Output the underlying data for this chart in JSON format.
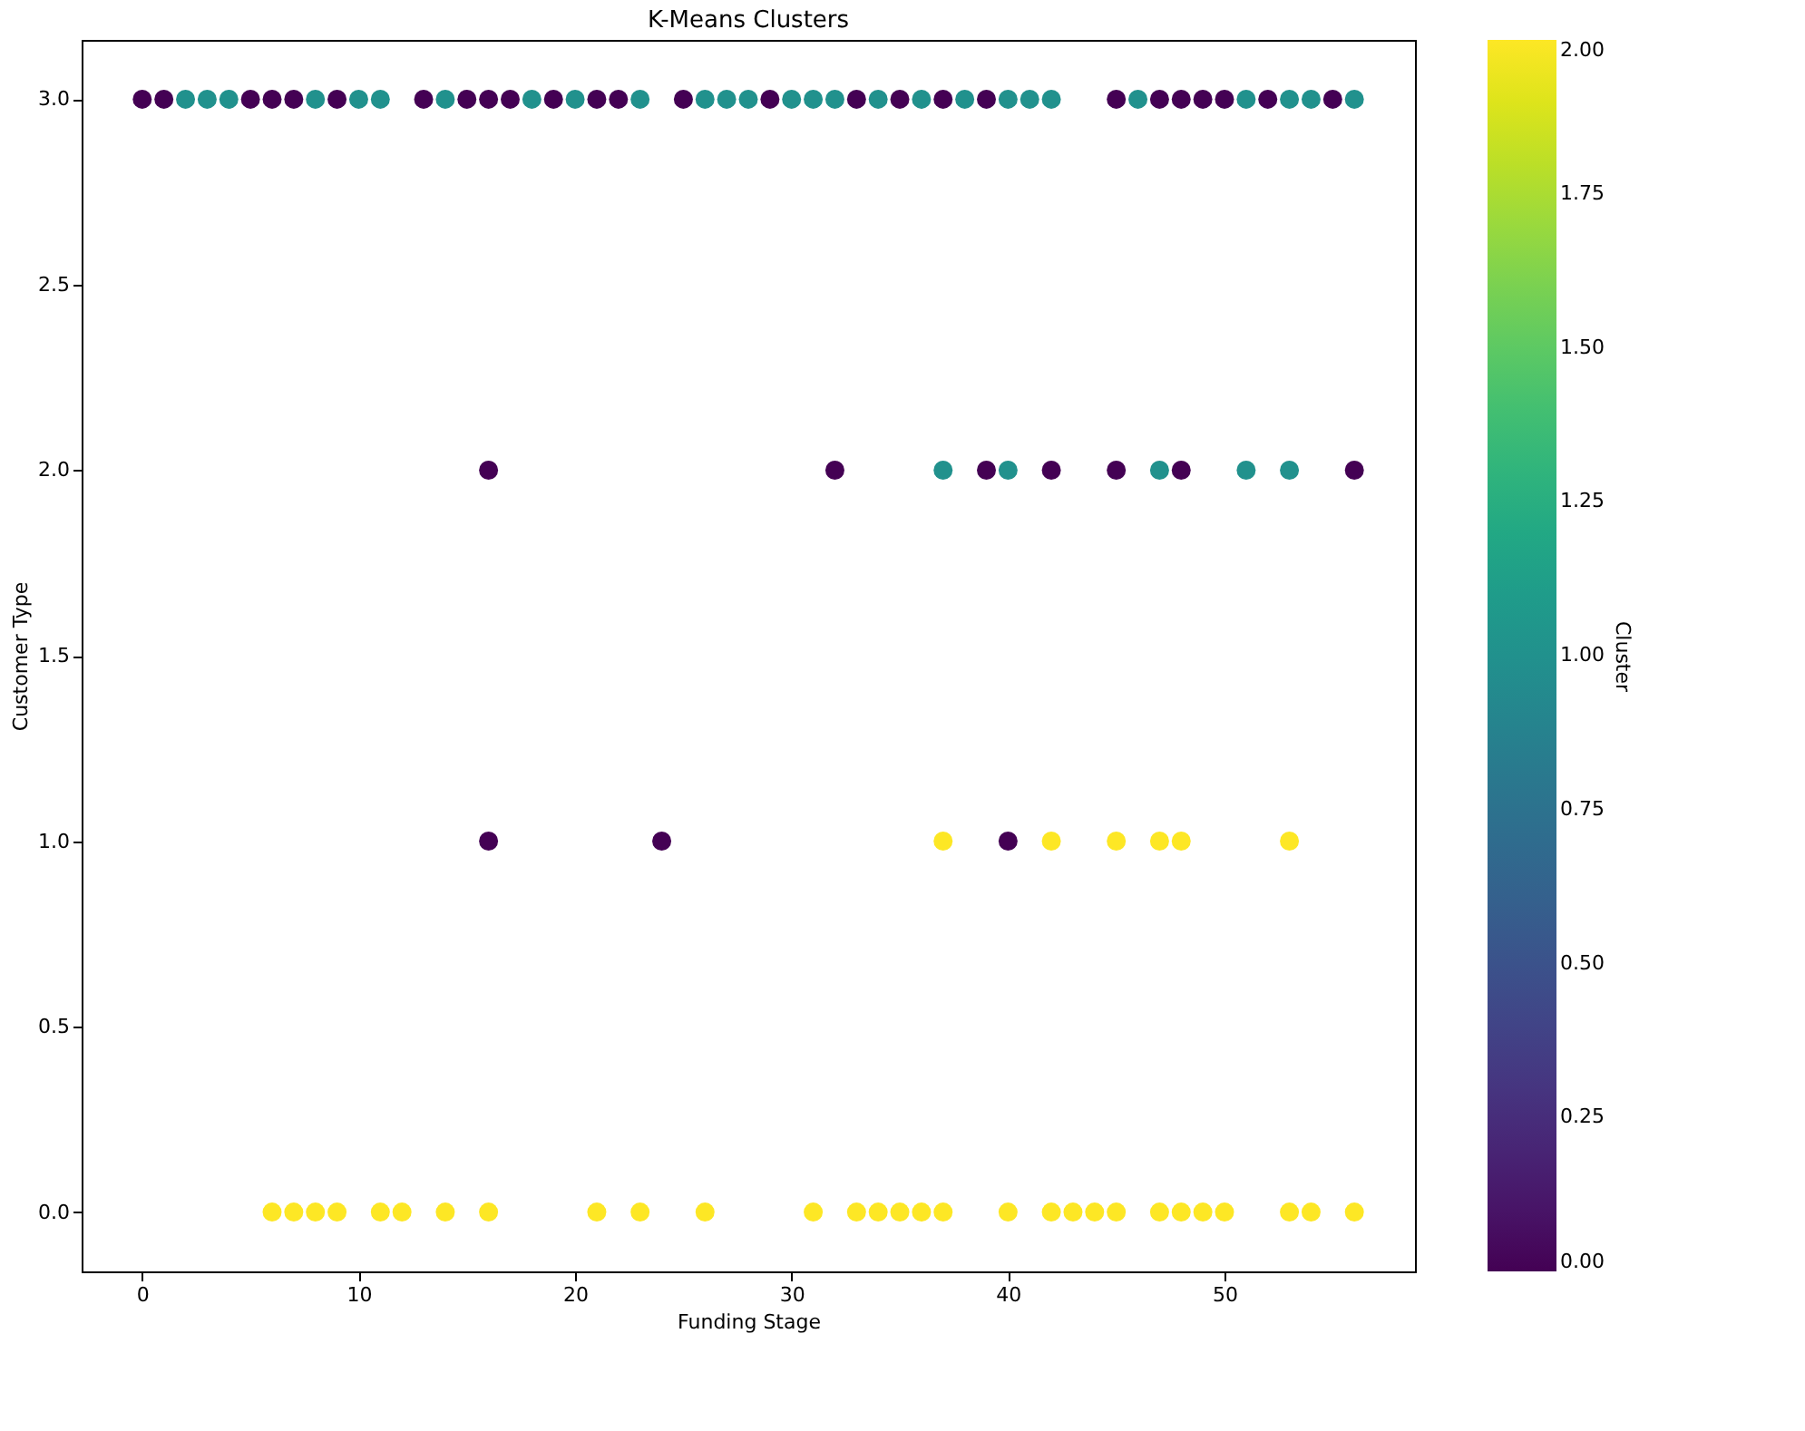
{
  "chart_data": {
    "type": "scatter",
    "title": "K-Means Clusters",
    "xlabel": "Funding Stage",
    "ylabel": "Customer Type",
    "clabel": "Cluster",
    "series": [
      {
        "x": [
          0,
          1,
          2,
          3,
          4,
          5,
          6,
          7,
          8,
          9,
          10,
          11,
          13,
          14,
          15,
          16,
          17,
          18,
          19,
          20,
          21,
          22,
          23,
          25,
          26,
          27,
          28,
          29,
          30,
          31,
          32,
          33,
          34,
          35,
          36,
          37,
          38,
          39,
          40,
          41,
          42,
          45,
          46,
          47,
          48,
          49,
          50,
          51,
          52,
          53,
          54,
          55,
          56,
          16,
          32,
          37,
          39,
          40,
          42,
          45,
          47,
          48,
          51,
          53,
          56,
          16,
          24,
          37,
          40,
          42,
          45,
          47,
          48,
          53,
          6,
          7,
          8,
          9,
          11,
          12,
          14,
          16,
          21,
          23,
          26,
          31,
          33,
          34,
          35,
          36,
          37,
          40,
          42,
          43,
          44,
          45,
          47,
          48,
          49,
          50,
          53,
          54,
          56
        ],
        "values": [
          3,
          3,
          3,
          3,
          3,
          3,
          3,
          3,
          3,
          3,
          3,
          3,
          3,
          3,
          3,
          3,
          3,
          3,
          3,
          3,
          3,
          3,
          3,
          3,
          3,
          3,
          3,
          3,
          3,
          3,
          3,
          3,
          3,
          3,
          3,
          3,
          3,
          3,
          3,
          3,
          3,
          3,
          3,
          3,
          3,
          3,
          3,
          3,
          3,
          3,
          3,
          3,
          3,
          2,
          2,
          2,
          2,
          2,
          2,
          2,
          2,
          2,
          2,
          2,
          2,
          1,
          1,
          1,
          1,
          1,
          1,
          1,
          1,
          1,
          0,
          0,
          0,
          0,
          0,
          0,
          0,
          0,
          0,
          0,
          0,
          0,
          0,
          0,
          0,
          0,
          0,
          0,
          0,
          0,
          0,
          0,
          0,
          0,
          0,
          0,
          0,
          0,
          0
        ],
        "cvalues": [
          0,
          0,
          1,
          1,
          1,
          0,
          0,
          0,
          1,
          0,
          1,
          1,
          0,
          1,
          0,
          0,
          0,
          1,
          0,
          1,
          0,
          0,
          1,
          0,
          1,
          1,
          1,
          0,
          1,
          1,
          1,
          0,
          1,
          0,
          1,
          0,
          1,
          0,
          1,
          1,
          1,
          0,
          1,
          0,
          0,
          0,
          0,
          1,
          0,
          1,
          1,
          0,
          1,
          0,
          0,
          1,
          0,
          1,
          0,
          0,
          1,
          0,
          1,
          1,
          0,
          0,
          0,
          2,
          0,
          2,
          2,
          2,
          2,
          2,
          2,
          2,
          2,
          2,
          2,
          2,
          2,
          2,
          2,
          2,
          2,
          2,
          2,
          2,
          2,
          2,
          2,
          2,
          2,
          2,
          2,
          2,
          2,
          2,
          2,
          2,
          2,
          2,
          2
        ]
      }
    ],
    "xlim": [
      -2.8,
      58.8
    ],
    "xticks": [
      0,
      10,
      20,
      30,
      40,
      50
    ],
    "ylim": [
      -0.16,
      3.16
    ],
    "yticks": [
      {
        "value": 0,
        "label": "0.0"
      },
      {
        "value": 0.5,
        "label": "0.5"
      },
      {
        "value": 1,
        "label": "1.0"
      },
      {
        "value": 1.5,
        "label": "1.5"
      },
      {
        "value": 2,
        "label": "2.0"
      },
      {
        "value": 2.5,
        "label": "2.5"
      },
      {
        "value": 3,
        "label": "3.0"
      }
    ],
    "clim": [
      0,
      2
    ],
    "cticks": [
      {
        "value": 0,
        "label": "0.00"
      },
      {
        "value": 0.25,
        "label": "0.25"
      },
      {
        "value": 0.5,
        "label": "0.50"
      },
      {
        "value": 0.75,
        "label": "0.75"
      },
      {
        "value": 1,
        "label": "1.00"
      },
      {
        "value": 1.25,
        "label": "1.25"
      },
      {
        "value": 1.5,
        "label": "1.50"
      },
      {
        "value": 1.75,
        "label": "1.75"
      },
      {
        "value": 2,
        "label": "2.00"
      }
    ],
    "grid": false,
    "marker": "circle"
  }
}
